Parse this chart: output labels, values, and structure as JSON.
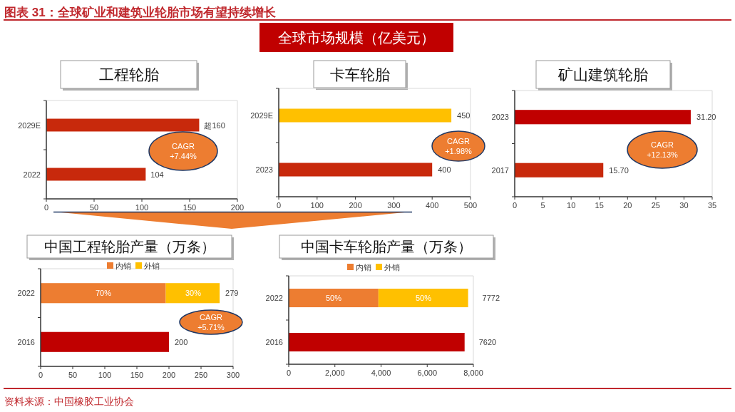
{
  "chart_data": [
    {
      "type": "other",
      "title": "图表 31：全球矿业和建筑业轮胎市场有望持续增长",
      "subtitle": "全球市场规模（亿美元）",
      "annotations": [
        "资料来源：中国橡胶工业协会"
      ]
    },
    {
      "type": "bar",
      "orientation": "horizontal",
      "title": "工程轮胎",
      "categories": [
        "2029E",
        "2022"
      ],
      "values": [
        160,
        104
      ],
      "colors": [
        "#c8290c",
        "#c8290c"
      ],
      "value_labels": [
        "超160",
        "104"
      ],
      "xlim": [
        0,
        200
      ],
      "xticks": [
        0,
        50,
        100,
        150,
        200
      ],
      "annotations": [
        "CAGR\n+7.44%"
      ]
    },
    {
      "type": "bar",
      "orientation": "horizontal",
      "title": "卡车轮胎",
      "categories": [
        "2029E",
        "2023"
      ],
      "values": [
        450,
        400
      ],
      "colors": [
        "#ffc000",
        "#c8290c"
      ],
      "data_labels": true,
      "xlim": [
        0,
        500
      ],
      "xticks": [
        0,
        100,
        200,
        300,
        400,
        500
      ],
      "annotations": [
        "CAGR\n+1.98%"
      ]
    },
    {
      "type": "bar",
      "orientation": "horizontal",
      "title": "矿山建筑轮胎",
      "categories": [
        "2023",
        "2017"
      ],
      "values": [
        31.2,
        15.7
      ],
      "colors": [
        "#c00000",
        "#c8290c"
      ],
      "value_labels": [
        "31.20",
        "15.70"
      ],
      "xlim": [
        0,
        35
      ],
      "xticks": [
        0,
        5,
        10,
        15,
        20,
        25,
        30,
        35
      ],
      "annotations": [
        "CAGR\n+12.13%"
      ]
    },
    {
      "type": "bar",
      "orientation": "horizontal",
      "stacked": true,
      "title": "中国工程轮胎产量（万条）",
      "categories": [
        "2022",
        "2016"
      ],
      "series": [
        {
          "name": "内销",
          "color": "#ed7d31",
          "values": [
            195,
            null
          ]
        },
        {
          "name": "外销",
          "color": "#ffc000",
          "values": [
            84,
            null
          ]
        },
        {
          "color": "#c00000",
          "values": [
            null,
            200
          ]
        }
      ],
      "totals": [
        "279",
        "200"
      ],
      "legend": "top",
      "xlim": [
        0,
        300
      ],
      "xticks": [
        0,
        50,
        100,
        150,
        200,
        250,
        300
      ],
      "annotations": [
        "CAGR\n+5.71%",
        "70%",
        "30%"
      ]
    },
    {
      "type": "bar",
      "orientation": "horizontal",
      "stacked": true,
      "title": "中国卡车轮胎产量（万条）",
      "categories": [
        "2022",
        "2016"
      ],
      "series": [
        {
          "name": "内销",
          "color": "#ed7d31",
          "values": [
            3886,
            null
          ]
        },
        {
          "name": "外销",
          "color": "#ffc000",
          "values": [
            3886,
            null
          ]
        },
        {
          "color": "#c00000",
          "values": [
            null,
            7620
          ]
        }
      ],
      "totals": [
        "7772",
        "7620"
      ],
      "legend": "top",
      "xlim": [
        0,
        8000
      ],
      "xticks": [
        0,
        {
          "value": 2000,
          "label": "2,000"
        },
        {
          "value": 4000,
          "label": "4,000"
        },
        {
          "value": 6000,
          "label": "6,000"
        },
        {
          "value": 8000,
          "label": "8,000"
        }
      ],
      "annotations": [
        "50%",
        "50%"
      ]
    }
  ]
}
